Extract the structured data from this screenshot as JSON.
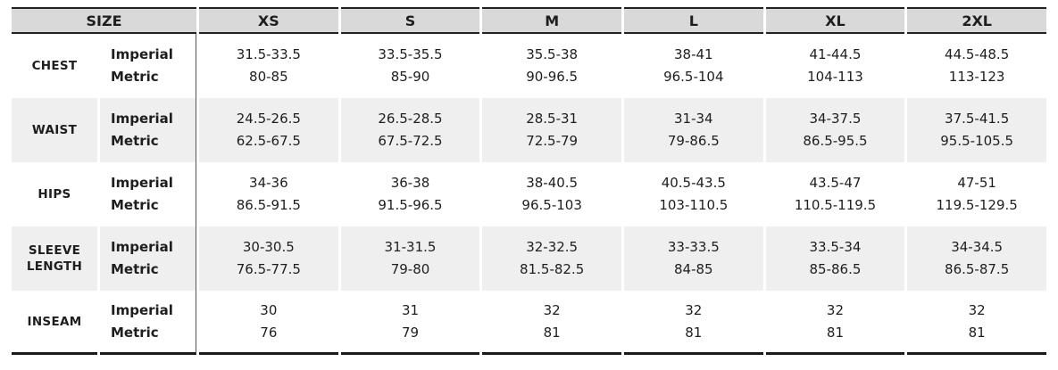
{
  "chart_data": {
    "type": "table",
    "columns": [
      "SIZE",
      "XS",
      "S",
      "M",
      "L",
      "XL",
      "2XL"
    ],
    "unit_labels": {
      "imperial": "Imperial",
      "metric": "Metric"
    },
    "rows": [
      {
        "label": "CHEST",
        "imperial": [
          "31.5-33.5",
          "33.5-35.5",
          "35.5-38",
          "38-41",
          "41-44.5",
          "44.5-48.5"
        ],
        "metric": [
          "80-85",
          "85-90",
          "90-96.5",
          "96.5-104",
          "104-113",
          "113-123"
        ]
      },
      {
        "label": "WAIST",
        "imperial": [
          "24.5-26.5",
          "26.5-28.5",
          "28.5-31",
          "31-34",
          "34-37.5",
          "37.5-41.5"
        ],
        "metric": [
          "62.5-67.5",
          "67.5-72.5",
          "72.5-79",
          "79-86.5",
          "86.5-95.5",
          "95.5-105.5"
        ]
      },
      {
        "label": "HIPS",
        "imperial": [
          "34-36",
          "36-38",
          "38-40.5",
          "40.5-43.5",
          "43.5-47",
          "47-51"
        ],
        "metric": [
          "86.5-91.5",
          "91.5-96.5",
          "96.5-103",
          "103-110.5",
          "110.5-119.5",
          "119.5-129.5"
        ]
      },
      {
        "label": "SLEEVE LENGTH",
        "imperial": [
          "30-30.5",
          "31-31.5",
          "32-32.5",
          "33-33.5",
          "33.5-34",
          "34-34.5"
        ],
        "metric": [
          "76.5-77.5",
          "79-80",
          "81.5-82.5",
          "84-85",
          "85-86.5",
          "86.5-87.5"
        ]
      },
      {
        "label": "INSEAM",
        "imperial": [
          "30",
          "31",
          "32",
          "32",
          "32",
          "32"
        ],
        "metric": [
          "76",
          "79",
          "81",
          "81",
          "81",
          "81"
        ]
      }
    ],
    "layout": {
      "striped_rows": true,
      "legend_position": "none"
    }
  },
  "colors": {
    "header_bg": "#d9d9d9",
    "stripe_bg": "#efefef",
    "border_dark": "#222222",
    "border_heavy": "#1a1a1a",
    "divider": "#555555",
    "text": "#1e1e1e"
  }
}
